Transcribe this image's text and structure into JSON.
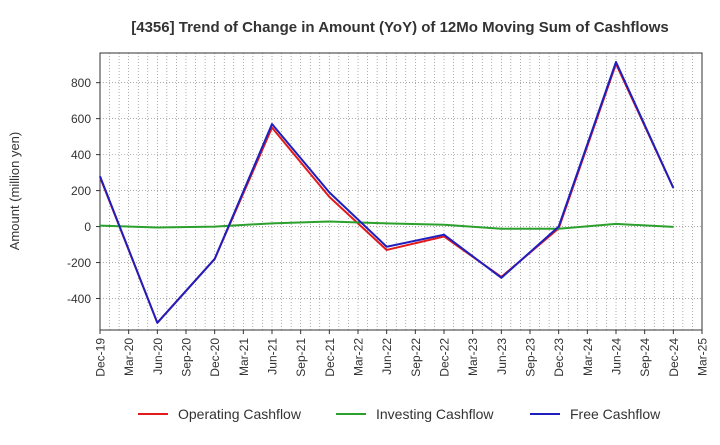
{
  "chart_data": {
    "type": "line",
    "title": "[4356]  Trend of Change in Amount (YoY) of 12Mo Moving Sum of Cashflows",
    "xlabel": "",
    "ylabel": "Amount (million yen)",
    "categories": [
      "Dec-19",
      "Mar-20",
      "Jun-20",
      "Sep-20",
      "Dec-20",
      "Mar-21",
      "Jun-21",
      "Sep-21",
      "Dec-21",
      "Mar-22",
      "Jun-22",
      "Sep-22",
      "Dec-22",
      "Mar-23",
      "Jun-23",
      "Sep-23",
      "Dec-23",
      "Mar-24",
      "Jun-24",
      "Sep-24",
      "Dec-24",
      "Mar-25"
    ],
    "ylim": [
      -575,
      965
    ],
    "yticks": [
      -400,
      -200,
      0,
      200,
      400,
      600,
      800
    ],
    "grid": true,
    "legend_position": "bottom",
    "series": [
      {
        "name": "Operating Cashflow",
        "color": "#e31a1c",
        "points": [
          [
            0,
            275
          ],
          [
            2,
            -535
          ],
          [
            4,
            -180
          ],
          [
            6,
            550
          ],
          [
            8,
            165
          ],
          [
            10,
            -130
          ],
          [
            12,
            -55
          ],
          [
            14,
            -280
          ],
          [
            16,
            -10
          ],
          [
            18,
            905
          ],
          [
            20,
            215
          ]
        ]
      },
      {
        "name": "Investing Cashflow",
        "color": "#2ca02c",
        "points": [
          [
            0,
            5
          ],
          [
            2,
            -5
          ],
          [
            4,
            0
          ],
          [
            6,
            18
          ],
          [
            8,
            28
          ],
          [
            10,
            18
          ],
          [
            12,
            10
          ],
          [
            14,
            -12
          ],
          [
            16,
            -12
          ],
          [
            18,
            15
          ],
          [
            20,
            -2
          ]
        ]
      },
      {
        "name": "Free Cashflow",
        "color": "#1f1fbf",
        "points": [
          [
            0,
            280
          ],
          [
            2,
            -535
          ],
          [
            4,
            -180
          ],
          [
            6,
            570
          ],
          [
            8,
            190
          ],
          [
            10,
            -112
          ],
          [
            12,
            -45
          ],
          [
            14,
            -285
          ],
          [
            16,
            0
          ],
          [
            18,
            915
          ],
          [
            20,
            215
          ]
        ]
      }
    ]
  }
}
